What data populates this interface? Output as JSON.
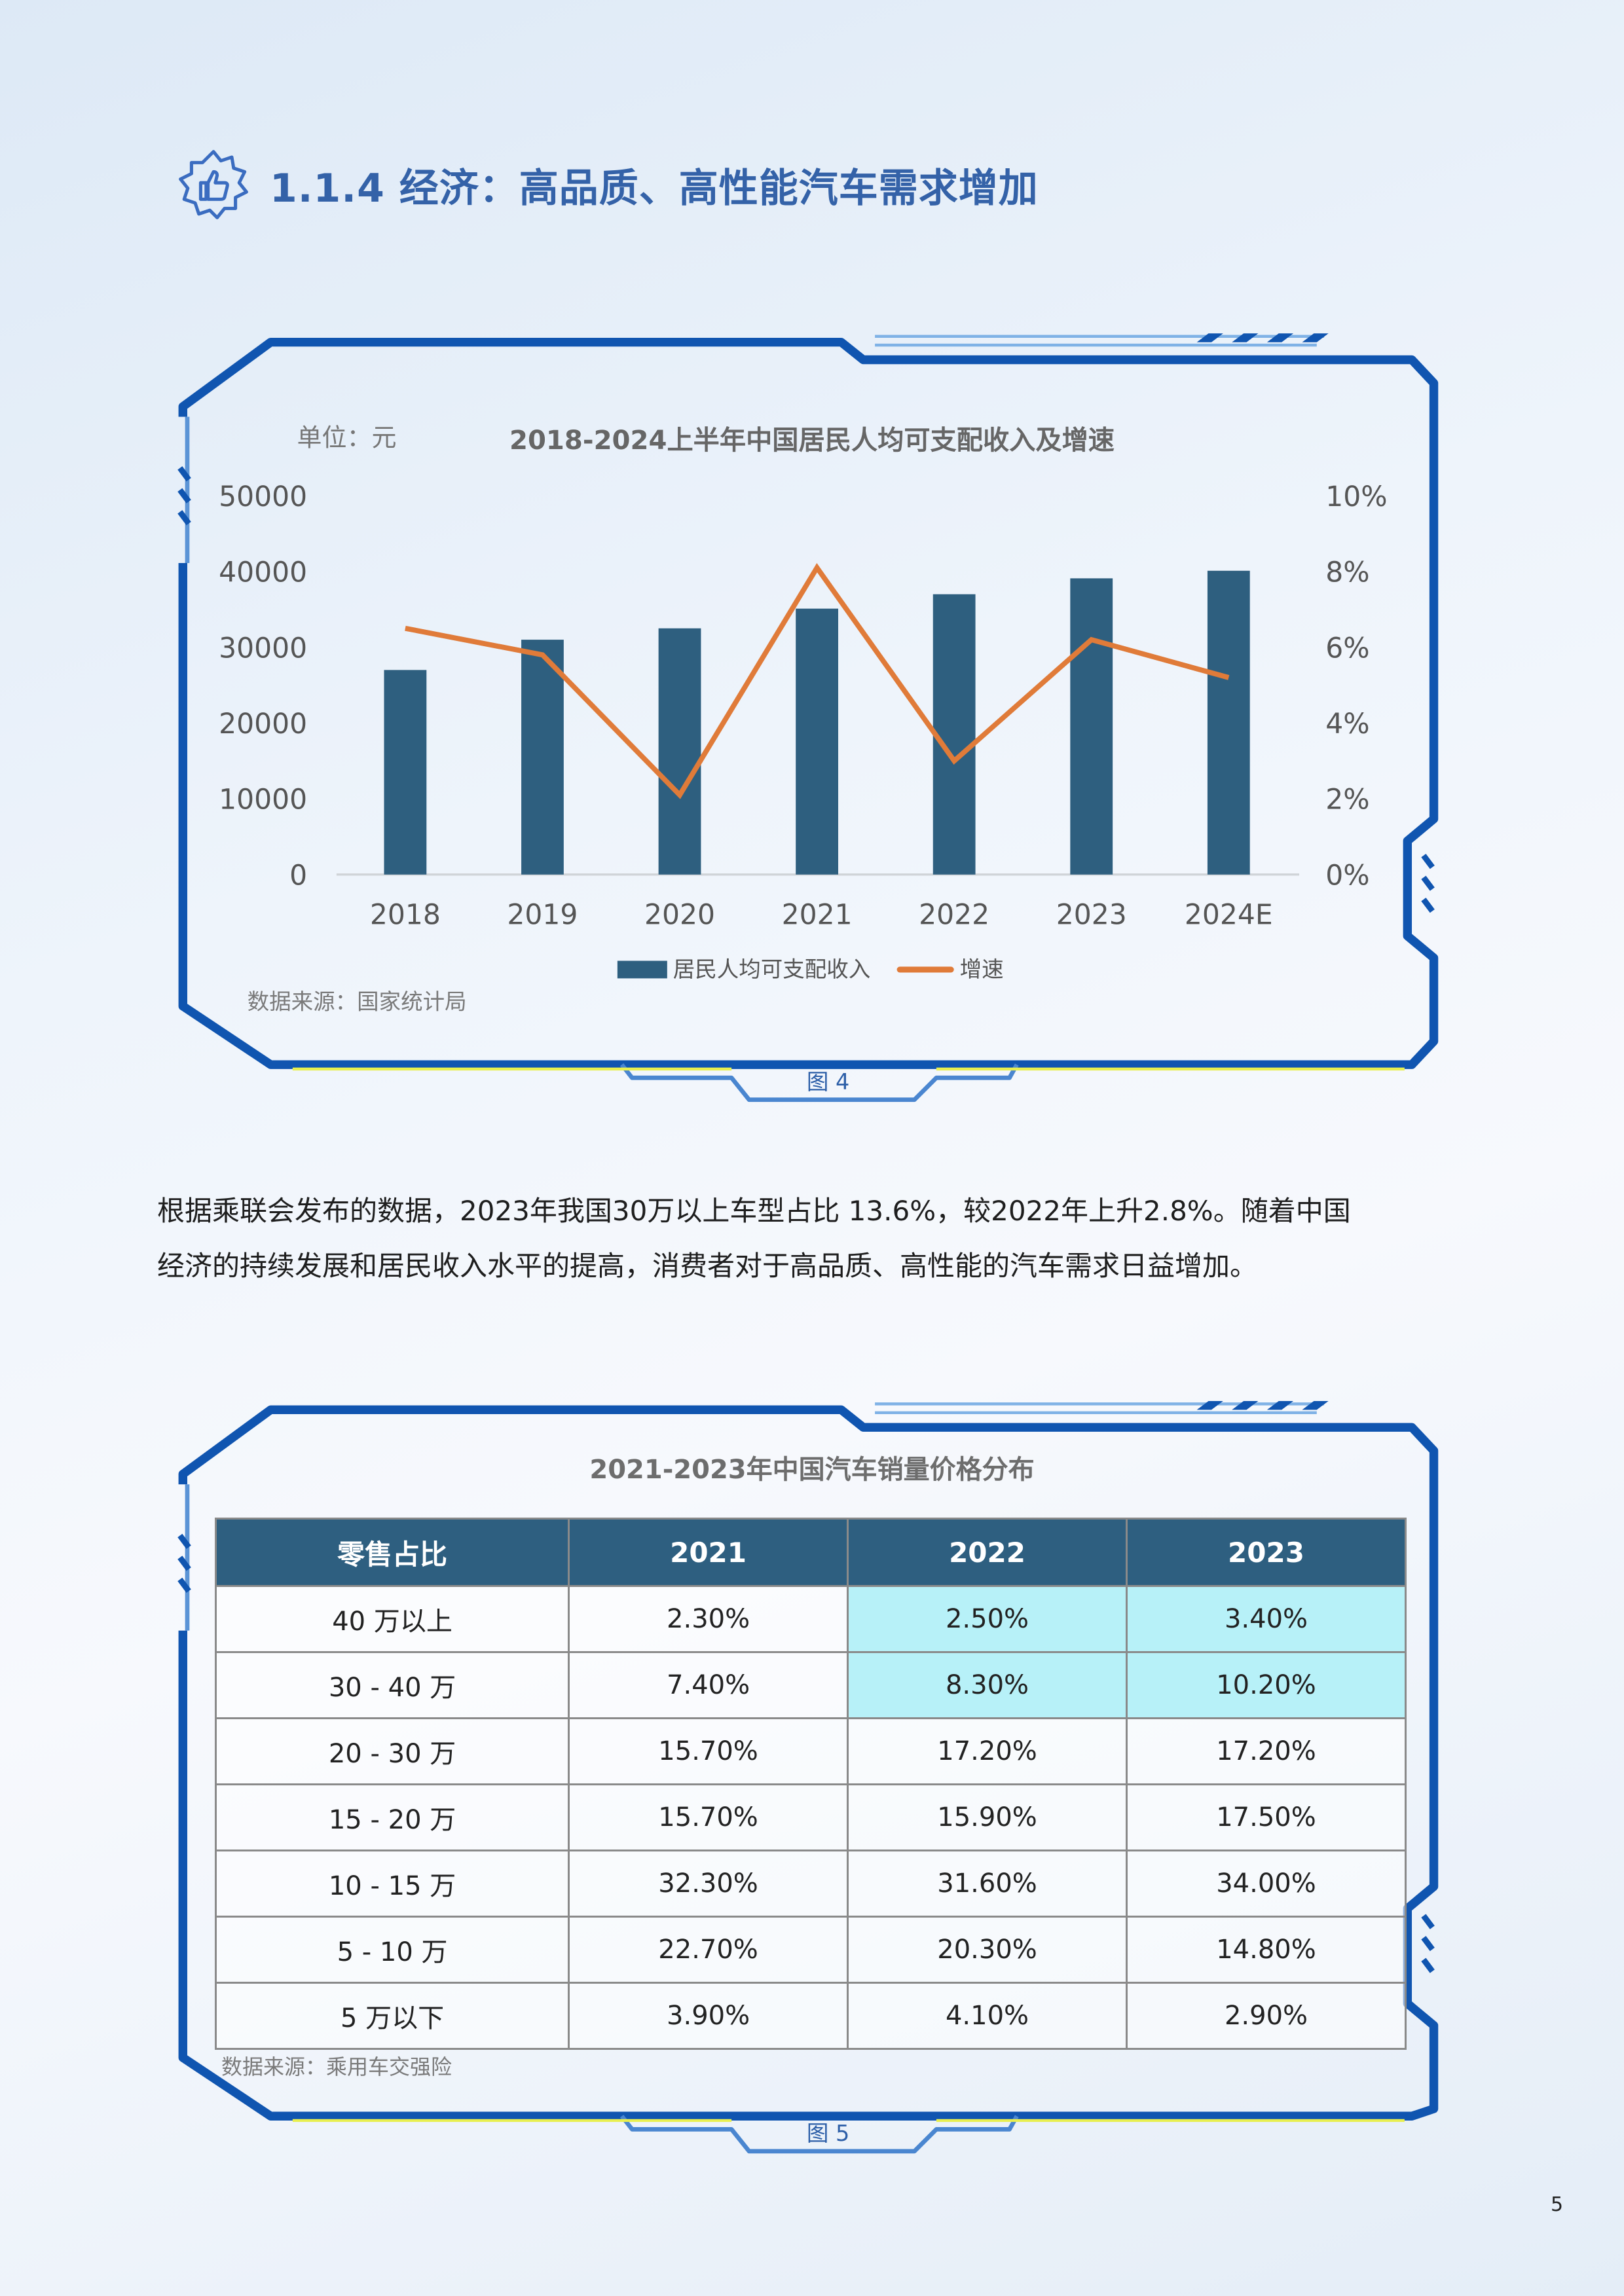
{
  "heading": {
    "icon": "thumbs-up-badge-icon",
    "text": "1.1.4 经济：高品质、高性能汽车需求增加"
  },
  "figure4": {
    "caption": "图 4",
    "unit_label": "单位：元",
    "source": "数据来源：国家统计局",
    "chart_data": {
      "type": "bar+line",
      "title": "2018-2024上半年中国居民人均可支配收入及增速",
      "categories": [
        "2018",
        "2019",
        "2020",
        "2021",
        "2022",
        "2023",
        "2024E"
      ],
      "series": [
        {
          "name": "居民人均可支配收入",
          "type": "bar",
          "axis": "left",
          "color": "#2e5f7f",
          "values": [
            27000,
            31000,
            32500,
            35100,
            37000,
            39100,
            40100
          ]
        },
        {
          "name": "增速",
          "type": "line",
          "axis": "right",
          "color": "#e07b39",
          "values": [
            6.5,
            5.8,
            2.1,
            8.1,
            3.0,
            6.2,
            5.2
          ]
        }
      ],
      "left_axis": {
        "ylim": [
          0,
          50000
        ],
        "ticks": [
          "0",
          "10000",
          "20000",
          "30000",
          "40000",
          "50000"
        ]
      },
      "right_axis": {
        "ylim": [
          0,
          10
        ],
        "ticks": [
          "0%",
          "2%",
          "4%",
          "6%",
          "8%",
          "10%"
        ]
      },
      "grid": false,
      "legend": "bottom"
    }
  },
  "paragraph": {
    "line1": "根据乘联会发布的数据，2023年我国30万以上车型占比 13.6%，较2022年上升2.8%。随着中国",
    "line2": "经济的持续发展和居民收入水平的提高，消费者对于高品质、高性能的汽车需求日益增加。"
  },
  "figure5": {
    "caption": "图 5",
    "title": "2021-2023年中国汽车销量价格分布",
    "source": "数据来源：乘用车交强险",
    "header_color": "#2e5f80",
    "highlight_color": "#b7f1f8",
    "columns": [
      "零售占比",
      "2021",
      "2022",
      "2023"
    ],
    "rows": [
      {
        "label": "40 万以上",
        "values": [
          "2.30%",
          "2.50%",
          "3.40%"
        ],
        "highlight": [
          false,
          true,
          true
        ]
      },
      {
        "label": "30 - 40 万",
        "values": [
          "7.40%",
          "8.30%",
          "10.20%"
        ],
        "highlight": [
          false,
          true,
          true
        ]
      },
      {
        "label": "20 - 30 万",
        "values": [
          "15.70%",
          "17.20%",
          "17.20%"
        ],
        "highlight": [
          false,
          false,
          false
        ]
      },
      {
        "label": "15 - 20 万",
        "values": [
          "15.70%",
          "15.90%",
          "17.50%"
        ],
        "highlight": [
          false,
          false,
          false
        ]
      },
      {
        "label": "10 - 15 万",
        "values": [
          "32.30%",
          "31.60%",
          "34.00%"
        ],
        "highlight": [
          false,
          false,
          false
        ]
      },
      {
        "label": "5 - 10 万",
        "values": [
          "22.70%",
          "20.30%",
          "14.80%"
        ],
        "highlight": [
          false,
          false,
          false
        ]
      },
      {
        "label": "5 万以下",
        "values": [
          "3.90%",
          "4.10%",
          "2.90%"
        ],
        "highlight": [
          false,
          false,
          false
        ]
      }
    ]
  },
  "page_number": "5"
}
